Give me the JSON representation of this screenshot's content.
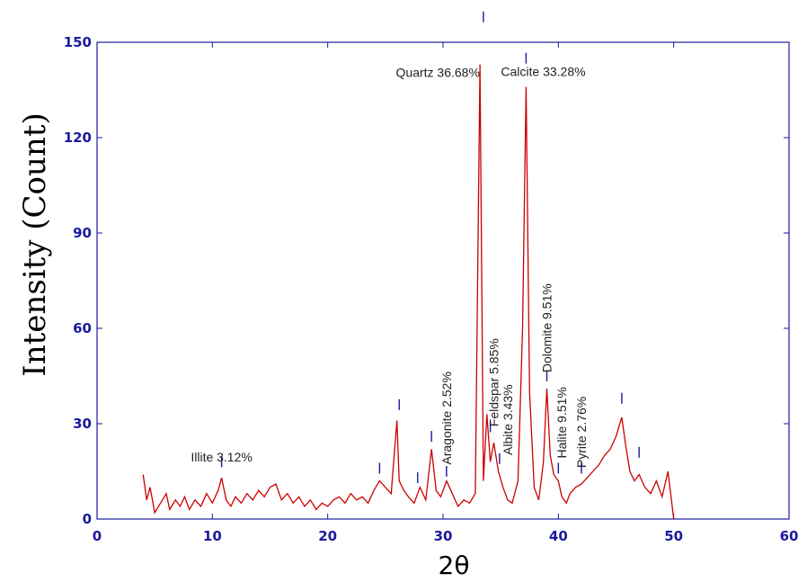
{
  "chart_data": {
    "type": "line",
    "xlabel": "2θ",
    "ylabel": "Intensity (Count)",
    "xlim": [
      0,
      60
    ],
    "ylim": [
      0,
      150
    ],
    "x_ticks": [
      0,
      10,
      20,
      30,
      40,
      50,
      60
    ],
    "y_ticks": [
      0,
      30,
      60,
      90,
      120,
      150
    ],
    "series_color": "#cc0000",
    "axis_color": "#1a1a9e",
    "series": [
      {
        "x": [
          4.0,
          4.3,
          4.6,
          5.0,
          5.5,
          6.0,
          6.3,
          6.8,
          7.2,
          7.6,
          8.0,
          8.5,
          9.0,
          9.5,
          10.0,
          10.5,
          10.8,
          11.2,
          11.6,
          12.0,
          12.5,
          13.0,
          13.5,
          14.0,
          14.5,
          15.0,
          15.5,
          16.0,
          16.5,
          17.0,
          17.5,
          18.0,
          18.5,
          19.0,
          19.5,
          20.0,
          20.5,
          21.0,
          21.5,
          22.0,
          22.5,
          23.0,
          23.5,
          24.0,
          24.5,
          25.0,
          25.5,
          26.0,
          26.2,
          26.6,
          27.0,
          27.5,
          28.0,
          28.5,
          29.0,
          29.4,
          29.8,
          30.3,
          30.8,
          31.3,
          31.8,
          32.3,
          32.8,
          33.2,
          33.5,
          33.8,
          34.1,
          34.4,
          34.8,
          35.2,
          35.6,
          36.0,
          36.5,
          36.9,
          37.2,
          37.5,
          37.9,
          38.3,
          38.7,
          39.0,
          39.3,
          39.6,
          40.0,
          40.3,
          40.7,
          41.0,
          41.5,
          42.0,
          42.5,
          43.0,
          43.5,
          44.0,
          44.5,
          45.0,
          45.5,
          45.8,
          46.2,
          46.6,
          47.0,
          47.5,
          48.0,
          48.5,
          49.0,
          49.5,
          50.0
        ],
        "y": [
          14,
          6,
          10,
          2,
          5,
          8,
          3,
          6,
          4,
          7,
          3,
          6,
          4,
          8,
          5,
          9,
          13,
          6,
          4,
          7,
          5,
          8,
          6,
          9,
          7,
          10,
          11,
          6,
          8,
          5,
          7,
          4,
          6,
          3,
          5,
          4,
          6,
          7,
          5,
          8,
          6,
          7,
          5,
          9,
          12,
          10,
          8,
          31,
          12,
          9,
          7,
          5,
          10,
          6,
          22,
          9,
          7,
          12,
          8,
          4,
          6,
          5,
          8,
          143,
          12,
          33,
          18,
          24,
          15,
          10,
          6,
          5,
          12,
          60,
          136,
          40,
          10,
          6,
          18,
          41,
          20,
          14,
          12,
          7,
          5,
          8,
          10,
          11,
          13,
          15,
          17,
          20,
          22,
          26,
          32,
          24,
          15,
          12,
          14,
          10,
          8,
          12,
          7,
          15,
          0
        ]
      }
    ],
    "annotations": [
      {
        "text": "Quartz 36.68%",
        "x": 33.5,
        "y": 143,
        "rotated": false
      },
      {
        "text": "Calcite 33.28%",
        "x": 37.2,
        "y": 136,
        "rotated": false
      },
      {
        "text": "Illite 3.12%",
        "x": 10.8,
        "y": 13,
        "rotated": false
      },
      {
        "text": "Aragonite 2.52%",
        "x": 30.3,
        "y": 12,
        "rotated": true
      },
      {
        "text": "Feldspar 5.85%",
        "x": 34.4,
        "y": 24,
        "rotated": true
      },
      {
        "text": "Albite 3.43%",
        "x": 35.6,
        "y": 15,
        "rotated": true
      },
      {
        "text": "Dolomite 9.51%",
        "x": 39.0,
        "y": 41,
        "rotated": true
      },
      {
        "text": "Halite 9.51%",
        "x": 40.3,
        "y": 14,
        "rotated": true
      },
      {
        "text": "Pyrite 2.76%",
        "x": 42.0,
        "y": 11,
        "rotated": true
      }
    ],
    "peak_markers": [
      {
        "x": 10.8,
        "y": 18
      },
      {
        "x": 24.5,
        "y": 16
      },
      {
        "x": 26.2,
        "y": 36
      },
      {
        "x": 27.8,
        "y": 13
      },
      {
        "x": 29.0,
        "y": 26
      },
      {
        "x": 30.3,
        "y": 15
      },
      {
        "x": 33.5,
        "y": 158
      },
      {
        "x": 34.1,
        "y": 29
      },
      {
        "x": 34.9,
        "y": 19
      },
      {
        "x": 37.2,
        "y": 145
      },
      {
        "x": 39.0,
        "y": 45
      },
      {
        "x": 40.0,
        "y": 16
      },
      {
        "x": 42.0,
        "y": 16
      },
      {
        "x": 45.5,
        "y": 38
      },
      {
        "x": 47.0,
        "y": 21
      }
    ]
  }
}
